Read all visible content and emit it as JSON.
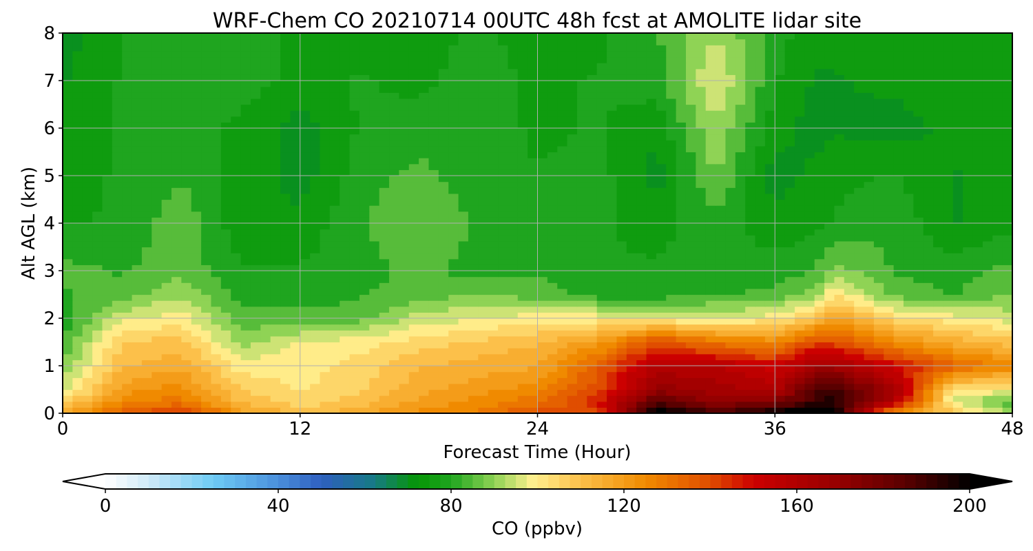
{
  "chart_data": {
    "type": "heatmap",
    "title": "WRF-Chem CO  20210714 00UTC 48h fcst at AMOLITE lidar site",
    "xlabel": "Forecast Time (Hour)",
    "ylabel": "Alt AGL (km)",
    "xlim": [
      0,
      48
    ],
    "ylim": [
      0,
      8
    ],
    "xticks": [
      "0",
      "12",
      "24",
      "36",
      "48"
    ],
    "yticks": [
      "0",
      "1",
      "2",
      "3",
      "4",
      "5",
      "6",
      "7",
      "8"
    ],
    "grid": true,
    "x": [
      0,
      3,
      6,
      9,
      12,
      15,
      18,
      21,
      24,
      27,
      30,
      33,
      36,
      38,
      39,
      42,
      45,
      48
    ],
    "y": [
      0,
      0.25,
      0.5,
      1,
      1.5,
      2,
      2.5,
      3,
      4,
      5,
      6,
      7,
      8
    ],
    "z": [
      [
        115,
        135,
        145,
        120,
        112,
        115,
        125,
        128,
        140,
        140,
        205,
        190,
        200,
        210,
        200,
        120,
        110,
        90
      ],
      [
        105,
        125,
        130,
        112,
        104,
        110,
        118,
        125,
        130,
        145,
        185,
        170,
        175,
        190,
        195,
        160,
        95,
        85
      ],
      [
        95,
        120,
        125,
        108,
        102,
        106,
        116,
        120,
        125,
        140,
        170,
        165,
        160,
        185,
        190,
        165,
        102,
        100
      ],
      [
        88,
        112,
        116,
        100,
        100,
        105,
        112,
        115,
        117,
        135,
        160,
        158,
        150,
        165,
        165,
        150,
        135,
        125
      ],
      [
        82,
        108,
        110,
        90,
        98,
        100,
        105,
        108,
        112,
        120,
        140,
        130,
        125,
        140,
        140,
        125,
        115,
        110
      ],
      [
        80,
        96,
        100,
        85,
        84,
        85,
        95,
        97,
        100,
        100,
        98,
        97,
        100,
        110,
        120,
        105,
        100,
        95
      ],
      [
        82,
        85,
        92,
        80,
        80,
        82,
        85,
        88,
        85,
        80,
        80,
        82,
        84,
        90,
        102,
        86,
        82,
        88
      ],
      [
        84,
        82,
        86,
        78,
        78,
        80,
        84,
        80,
        82,
        78,
        78,
        80,
        80,
        82,
        90,
        82,
        80,
        84
      ],
      [
        77,
        78,
        86,
        74,
        74,
        82,
        88,
        82,
        79,
        78,
        76,
        80,
        74,
        76,
        78,
        82,
        72,
        76
      ],
      [
        76,
        78,
        82,
        76,
        70,
        80,
        84,
        79,
        78,
        80,
        70,
        88,
        70,
        74,
        76,
        78,
        72,
        75
      ],
      [
        74,
        78,
        80,
        76,
        70,
        78,
        80,
        82,
        76,
        78,
        74,
        92,
        75,
        70,
        72,
        70,
        74,
        74
      ],
      [
        72,
        78,
        82,
        80,
        76,
        78,
        76,
        80,
        76,
        78,
        80,
        98,
        78,
        72,
        72,
        74,
        76,
        74
      ],
      [
        70,
        78,
        80,
        80,
        76,
        76,
        76,
        78,
        76,
        76,
        82,
        92,
        80,
        74,
        74,
        74,
        76,
        76
      ]
    ],
    "colorbar": {
      "label": "CO  (ppbv)",
      "min": 0,
      "max": 200,
      "ticks": [
        "0",
        "40",
        "80",
        "120",
        "160",
        "200"
      ],
      "extend": "both",
      "stops": [
        {
          "v": 0,
          "c": "#ffffff"
        },
        {
          "v": 10,
          "c": "#cfeaf8"
        },
        {
          "v": 25,
          "c": "#6ecbf5"
        },
        {
          "v": 40,
          "c": "#4a8fdc"
        },
        {
          "v": 50,
          "c": "#2e5fbf"
        },
        {
          "v": 62,
          "c": "#177a85"
        },
        {
          "v": 72,
          "c": "#069606"
        },
        {
          "v": 80,
          "c": "#1fa51f"
        },
        {
          "v": 90,
          "c": "#8fd355"
        },
        {
          "v": 99,
          "c": "#fff08f"
        },
        {
          "v": 110,
          "c": "#fcc04a"
        },
        {
          "v": 125,
          "c": "#f08a00"
        },
        {
          "v": 140,
          "c": "#e04d00"
        },
        {
          "v": 150,
          "c": "#cc0000"
        },
        {
          "v": 170,
          "c": "#950000"
        },
        {
          "v": 185,
          "c": "#5a0000"
        },
        {
          "v": 200,
          "c": "#000000"
        }
      ]
    }
  }
}
